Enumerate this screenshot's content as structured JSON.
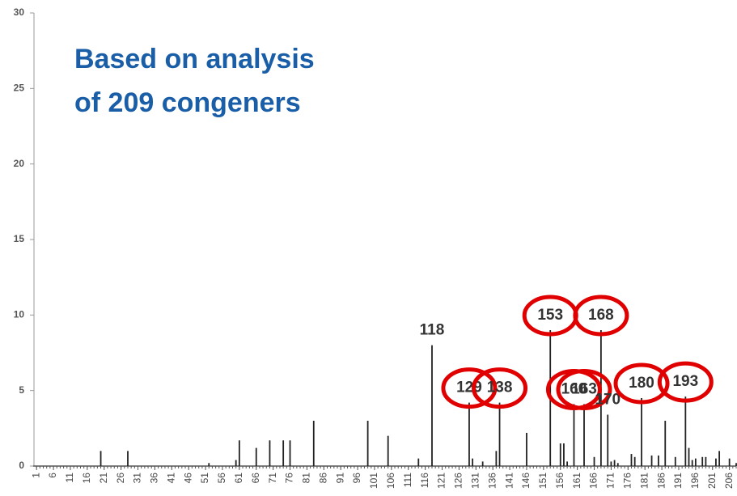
{
  "chart_data": {
    "type": "bar",
    "title": [
      "Based on analysis",
      "of 209 congeners"
    ],
    "color": "#222222",
    "annotation_color": "#e00000",
    "x": [
      20,
      28,
      52,
      60,
      61,
      66,
      70,
      74,
      76,
      83,
      99,
      105,
      114,
      118,
      129,
      130,
      133,
      137,
      138,
      146,
      153,
      156,
      157,
      158,
      160,
      163,
      166,
      168,
      170,
      171,
      172,
      173,
      177,
      178,
      180,
      183,
      185,
      187,
      190,
      193,
      194,
      195,
      196,
      198,
      199,
      202,
      203,
      206,
      208
    ],
    "values": [
      1,
      1,
      0.2,
      0.4,
      1.7,
      1.2,
      1.7,
      1.7,
      1.7,
      3,
      3,
      2,
      0.5,
      8,
      4.2,
      0.5,
      0.3,
      1,
      4.2,
      2.2,
      9,
      1.5,
      1.5,
      0.3,
      4.1,
      4.1,
      0.6,
      9,
      3.4,
      0.3,
      0.4,
      0.2,
      0.8,
      0.6,
      4.5,
      0.7,
      0.7,
      3,
      0.6,
      4.6,
      1.2,
      0.4,
      0.5,
      0.6,
      0.6,
      0.5,
      1,
      0.5,
      0.2
    ],
    "annotations": [
      {
        "x": 118,
        "circled": false
      },
      {
        "x": 129,
        "circled": true
      },
      {
        "x": 138,
        "circled": true
      },
      {
        "x": 153,
        "circled": true
      },
      {
        "x": 160,
        "circled": true
      },
      {
        "x": 163,
        "circled": true
      },
      {
        "x": 168,
        "circled": true
      },
      {
        "x": 170,
        "circled": false
      },
      {
        "x": 180,
        "circled": true
      },
      {
        "x": 193,
        "circled": true
      }
    ],
    "xlim": [
      0,
      208
    ],
    "xticks": [
      1,
      6,
      11,
      16,
      21,
      26,
      31,
      36,
      41,
      46,
      51,
      56,
      61,
      66,
      71,
      76,
      81,
      86,
      91,
      96,
      101,
      106,
      111,
      116,
      121,
      126,
      131,
      136,
      141,
      146,
      151,
      156,
      161,
      166,
      171,
      176,
      181,
      186,
      191,
      196,
      201,
      206
    ],
    "ylim": [
      0,
      30
    ],
    "yticks": [
      0,
      5,
      10,
      15,
      20,
      25,
      30
    ],
    "grid": false
  }
}
